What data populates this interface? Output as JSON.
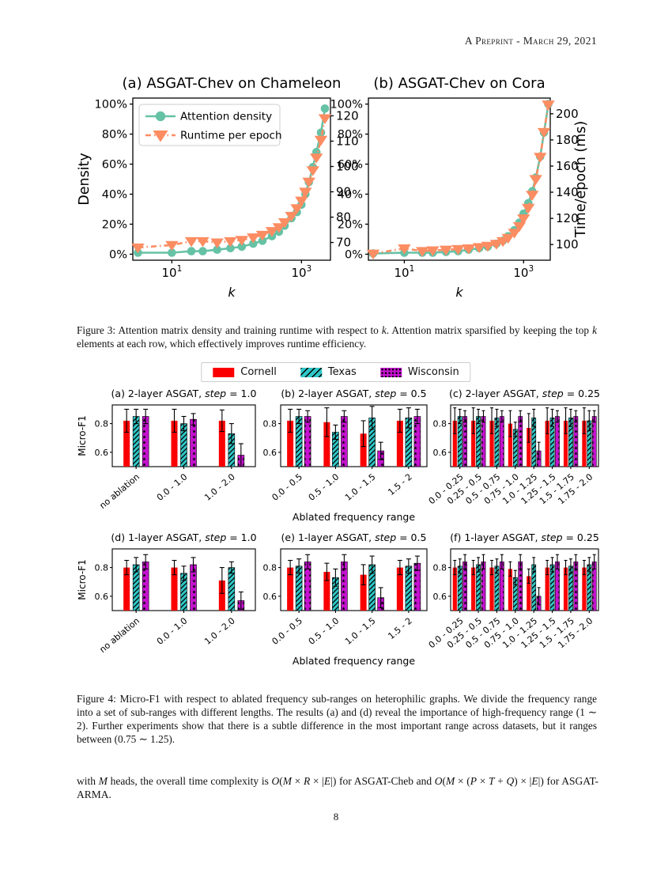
{
  "header": {
    "date_line": "A Preprint - March 29, 2021"
  },
  "figure3": {
    "chart_data": [
      {
        "type": "line",
        "title": "(a) ASGAT-Chev on Chameleon",
        "xlabel": "k",
        "ylabel_left": "Density",
        "ylabel_right": "",
        "xlim": [
          2.5,
          2800
        ],
        "ylim_left": [
          -4,
          104
        ],
        "ylim_right": [
          63,
          127
        ],
        "xticks": [
          {
            "v": 10,
            "base": "10",
            "exp": "1"
          },
          {
            "v": 1000,
            "base": "10",
            "exp": "3"
          }
        ],
        "yticks_left": [
          {
            "v": 0,
            "label": "0%"
          },
          {
            "v": 20,
            "label": "20%"
          },
          {
            "v": 40,
            "label": "40%"
          },
          {
            "v": 60,
            "label": "60%"
          },
          {
            "v": 80,
            "label": "80%"
          },
          {
            "v": 100,
            "label": "100%"
          }
        ],
        "yticks_right": [
          {
            "v": 70,
            "label": "70"
          },
          {
            "v": 80,
            "label": "80"
          },
          {
            "v": 90,
            "label": "90"
          },
          {
            "v": 100,
            "label": "100"
          },
          {
            "v": 110,
            "label": "110"
          },
          {
            "v": 120,
            "label": "120"
          }
        ],
        "show_legend": true,
        "series": [
          {
            "name": "Attention density",
            "color": "#66c2a5",
            "marker": "circle",
            "linestyle": "solid",
            "axis": "left",
            "x": [
              3,
              10,
              20,
              30,
              50,
              80,
              120,
              180,
              250,
              350,
              450,
              550,
              700,
              850,
              1000,
              1150,
              1300,
              1500,
              1700,
              2000,
              2300
            ],
            "y": [
              1,
              1,
              2,
              2,
              3,
              4,
              5,
              7,
              9,
              12,
              15,
              19,
              24,
              28,
              33,
              40,
              48,
              58,
              68,
              81,
              97
            ]
          },
          {
            "name": "Runtime per epoch",
            "color": "#fc8d62",
            "marker": "triangle-down",
            "linestyle": "dashdot",
            "axis": "right",
            "x": [
              3,
              10,
              20,
              30,
              50,
              80,
              120,
              180,
              250,
              350,
              450,
              550,
              700,
              850,
              1000,
              1150,
              1300,
              1500,
              1700,
              2000,
              2300
            ],
            "y": [
              68,
              69,
              70.5,
              70.5,
              70,
              70.5,
              71,
              72,
              73,
              74.5,
              76,
              78,
              80.5,
              83.5,
              86.5,
              90,
              94,
              98.5,
              103.5,
              110.5,
              119
            ]
          }
        ]
      },
      {
        "type": "line",
        "title": "(b) ASGAT-Chev on Cora",
        "xlabel": "k",
        "ylabel_left": "",
        "ylabel_right": "Time/epoch (ms)",
        "xlim": [
          2.5,
          2800
        ],
        "ylim_left": [
          -4,
          104
        ],
        "ylim_right": [
          88,
          212
        ],
        "xticks": [
          {
            "v": 10,
            "base": "10",
            "exp": "1"
          },
          {
            "v": 1000,
            "base": "10",
            "exp": "3"
          }
        ],
        "yticks_left": [
          {
            "v": 0,
            "label": "0%"
          },
          {
            "v": 20,
            "label": "20%"
          },
          {
            "v": 40,
            "label": "40%"
          },
          {
            "v": 60,
            "label": "60%"
          },
          {
            "v": 80,
            "label": "80%"
          },
          {
            "v": 100,
            "label": "100%"
          }
        ],
        "yticks_right": [
          {
            "v": 100,
            "label": "100"
          },
          {
            "v": 120,
            "label": "120"
          },
          {
            "v": 140,
            "label": "140"
          },
          {
            "v": 160,
            "label": "160"
          },
          {
            "v": 180,
            "label": "180"
          },
          {
            "v": 200,
            "label": "200"
          }
        ],
        "show_legend": false,
        "series": [
          {
            "name": "Attention density",
            "color": "#66c2a5",
            "marker": "circle",
            "linestyle": "solid",
            "axis": "left",
            "x": [
              3,
              10,
              20,
              30,
              50,
              80,
              120,
              180,
              250,
              350,
              450,
              550,
              700,
              850,
              1000,
              1200,
              1400,
              1600,
              1900,
              2200,
              2600
            ],
            "y": [
              0.5,
              1,
              1,
              1,
              1.5,
              2,
              3,
              4,
              5,
              7,
              9,
              12,
              16,
              21,
              27,
              34,
              42,
              51,
              65,
              81,
              100
            ]
          },
          {
            "name": "Runtime per epoch",
            "color": "#fc8d62",
            "marker": "triangle-down",
            "linestyle": "dashdot",
            "axis": "right",
            "x": [
              3,
              10,
              20,
              30,
              50,
              80,
              120,
              180,
              250,
              350,
              450,
              550,
              700,
              850,
              1000,
              1200,
              1400,
              1600,
              1900,
              2200,
              2600
            ],
            "y": [
              93,
              97,
              95,
              95.5,
              96,
              96.5,
              97,
              98,
              99,
              100.5,
              102.5,
              105,
              109,
              114,
              120,
              128,
              138,
              150,
              167,
              186,
              207
            ]
          }
        ]
      }
    ],
    "caption_segments": [
      {
        "t": "Figure 3: Attention matrix density and training runtime with respect to "
      },
      {
        "t": "k",
        "i": true
      },
      {
        "t": ". Attention matrix sparsified by keeping the top "
      },
      {
        "t": "k",
        "i": true
      },
      {
        "t": " elements at each row, which effectively improves runtime efficiency."
      }
    ]
  },
  "figure4": {
    "legend": [
      {
        "label": "Cornell",
        "color": "#fa0000",
        "hatch": "none"
      },
      {
        "label": "Texas",
        "color": "#2fc7c7",
        "hatch": "diag"
      },
      {
        "label": "Wisconsin",
        "color": "#c512cf",
        "hatch": "stars"
      }
    ],
    "ylabel": "Micro-F1",
    "xlabel": "Ablated frequency range",
    "ylim": [
      0.5,
      0.93
    ],
    "yticks": [
      {
        "v": 0.6,
        "label": "0.6"
      },
      {
        "v": 0.8,
        "label": "0.8"
      }
    ],
    "chart_data": [
      {
        "type": "bar",
        "title": "(a) 2-layer ASGAT, step = 1.0",
        "categories": [
          "no ablation",
          "0.0 - 1.0",
          "1.0 - 2.0"
        ],
        "series": [
          {
            "name": "Cornell",
            "values": [
              0.82,
              0.82,
              0.82
            ],
            "errors": [
              0.08,
              0.08,
              0.075
            ]
          },
          {
            "name": "Texas",
            "values": [
              0.85,
              0.8,
              0.73
            ],
            "errors": [
              0.05,
              0.05,
              0.07
            ]
          },
          {
            "name": "Wisconsin",
            "values": [
              0.85,
              0.83,
              0.58
            ],
            "errors": [
              0.05,
              0.04,
              0.08
            ]
          }
        ]
      },
      {
        "type": "bar",
        "title": "(b) 2-layer ASGAT, step = 0.5",
        "categories": [
          "0.0 - 0.5",
          "0.5 - 1.0",
          "1.0 - 1.5",
          "1.5 - 2"
        ],
        "series": [
          {
            "name": "Cornell",
            "values": [
              0.82,
              0.81,
              0.73,
              0.82
            ],
            "errors": [
              0.08,
              0.1,
              0.09,
              0.08
            ]
          },
          {
            "name": "Texas",
            "values": [
              0.85,
              0.74,
              0.84,
              0.84
            ],
            "errors": [
              0.05,
              0.05,
              0.08,
              0.07
            ]
          },
          {
            "name": "Wisconsin",
            "values": [
              0.85,
              0.85,
              0.61,
              0.85
            ],
            "errors": [
              0.04,
              0.04,
              0.06,
              0.05
            ]
          }
        ]
      },
      {
        "type": "bar",
        "title": "(c) 2-layer ASGAT, step = 0.25",
        "categories": [
          "0.0 - 0.25",
          "0.25 - 0.5",
          "0.5 - 0.75",
          "0.75 - 1.0",
          "1.0 - 1.25",
          "1.25 - 1.5",
          "1.5 - 1.75",
          "1.75 - 2.0"
        ],
        "series": [
          {
            "name": "Cornell",
            "values": [
              0.82,
              0.82,
              0.82,
              0.8,
              0.77,
              0.82,
              0.82,
              0.82
            ],
            "errors": [
              0.09,
              0.09,
              0.09,
              0.09,
              0.1,
              0.09,
              0.09,
              0.09
            ]
          },
          {
            "name": "Texas",
            "values": [
              0.85,
              0.85,
              0.84,
              0.76,
              0.84,
              0.84,
              0.84,
              0.82
            ],
            "errors": [
              0.05,
              0.05,
              0.06,
              0.05,
              0.06,
              0.06,
              0.06,
              0.07
            ]
          },
          {
            "name": "Wisconsin",
            "values": [
              0.85,
              0.85,
              0.85,
              0.85,
              0.61,
              0.85,
              0.85,
              0.85
            ],
            "errors": [
              0.04,
              0.04,
              0.04,
              0.04,
              0.06,
              0.04,
              0.04,
              0.04
            ]
          }
        ]
      },
      {
        "type": "bar",
        "title": "(d) 1-layer ASGAT, step = 1.0",
        "categories": [
          "no ablation",
          "0.0 - 1.0",
          "1.0 - 2.0"
        ],
        "series": [
          {
            "name": "Cornell",
            "values": [
              0.8,
              0.8,
              0.71
            ],
            "errors": [
              0.05,
              0.05,
              0.09
            ]
          },
          {
            "name": "Texas",
            "values": [
              0.82,
              0.76,
              0.8
            ],
            "errors": [
              0.05,
              0.05,
              0.04
            ]
          },
          {
            "name": "Wisconsin",
            "values": [
              0.84,
              0.82,
              0.57
            ],
            "errors": [
              0.05,
              0.05,
              0.06
            ]
          }
        ]
      },
      {
        "type": "bar",
        "title": "(e) 1-layer ASGAT, step = 0.5",
        "categories": [
          "0.0 - 0.5",
          "0.5 - 1.0",
          "1.0 - 1.5",
          "1.5 - 2"
        ],
        "series": [
          {
            "name": "Cornell",
            "values": [
              0.8,
              0.77,
              0.75,
              0.8
            ],
            "errors": [
              0.05,
              0.06,
              0.07,
              0.05
            ]
          },
          {
            "name": "Texas",
            "values": [
              0.81,
              0.73,
              0.82,
              0.81
            ],
            "errors": [
              0.05,
              0.06,
              0.06,
              0.05
            ]
          },
          {
            "name": "Wisconsin",
            "values": [
              0.84,
              0.84,
              0.59,
              0.83
            ],
            "errors": [
              0.05,
              0.05,
              0.07,
              0.05
            ]
          }
        ]
      },
      {
        "type": "bar",
        "title": "(f) 1-layer ASGAT, step = 0.25",
        "categories": [
          "0.0 - 0.25",
          "0.25 - 0.5",
          "0.5 - 0.75",
          "0.75 - 1.0",
          "1.0 - 1.25",
          "1.25 - 1.5",
          "1.5 - 1.75",
          "1.75 - 2.0"
        ],
        "series": [
          {
            "name": "Cornell",
            "values": [
              0.8,
              0.8,
              0.8,
              0.79,
              0.74,
              0.8,
              0.8,
              0.8
            ],
            "errors": [
              0.05,
              0.05,
              0.05,
              0.05,
              0.05,
              0.05,
              0.05,
              0.05
            ]
          },
          {
            "name": "Texas",
            "values": [
              0.81,
              0.82,
              0.81,
              0.73,
              0.82,
              0.82,
              0.81,
              0.82
            ],
            "errors": [
              0.05,
              0.05,
              0.05,
              0.05,
              0.05,
              0.05,
              0.05,
              0.05
            ]
          },
          {
            "name": "Wisconsin",
            "values": [
              0.84,
              0.84,
              0.84,
              0.84,
              0.6,
              0.84,
              0.84,
              0.84
            ],
            "errors": [
              0.05,
              0.05,
              0.05,
              0.05,
              0.06,
              0.05,
              0.05,
              0.05
            ]
          }
        ]
      }
    ],
    "caption_segments": [
      {
        "t": "Figure 4: Micro-F1 with respect to ablated frequency sub-ranges on heterophilic graphs. We divide the frequency range into a set of sub-ranges with different lengths. The results (a) and (d) reveal the importance of high-frequency range (1 ∼ 2). Further experiments show that there is a subtle difference in the most important range across datasets, but it ranges between (0.75 ∼ 1.25)."
      }
    ]
  },
  "body": {
    "segments": [
      {
        "t": "with "
      },
      {
        "t": "M",
        "i": true
      },
      {
        "t": " heads, the overall time complexity is "
      },
      {
        "t": "O",
        "i": true
      },
      {
        "t": "("
      },
      {
        "t": "M",
        "i": true
      },
      {
        "t": " × "
      },
      {
        "t": "R",
        "i": true
      },
      {
        "t": " × |"
      },
      {
        "t": "E",
        "i": true
      },
      {
        "t": "|) for ASGAT-Cheb and "
      },
      {
        "t": "O",
        "i": true
      },
      {
        "t": "("
      },
      {
        "t": "M",
        "i": true
      },
      {
        "t": " × ("
      },
      {
        "t": "P",
        "i": true
      },
      {
        "t": " × "
      },
      {
        "t": "T",
        "i": true
      },
      {
        "t": " + "
      },
      {
        "t": "Q",
        "i": true
      },
      {
        "t": ") × |"
      },
      {
        "t": "E",
        "i": true
      },
      {
        "t": "|) for ASGAT-ARMA."
      }
    ]
  },
  "page_number": "8"
}
